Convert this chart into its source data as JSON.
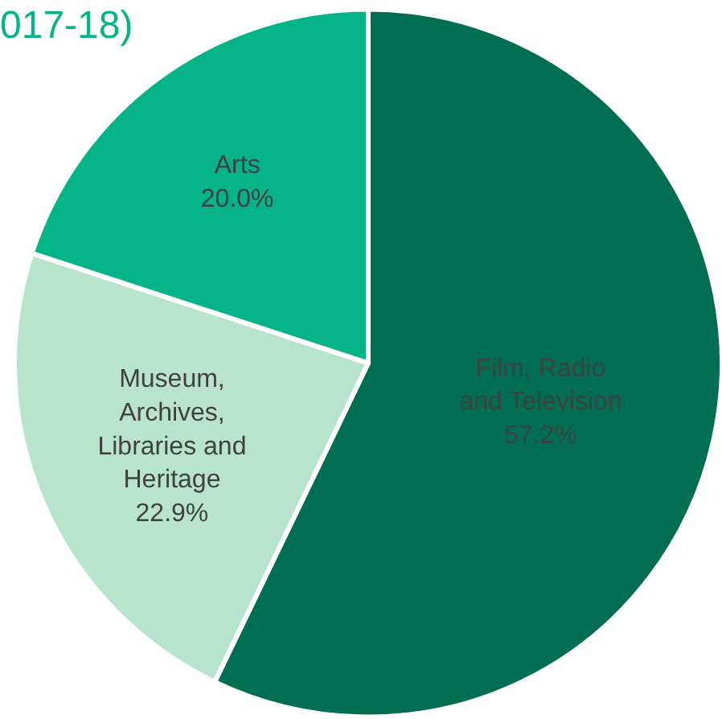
{
  "chart_data": {
    "type": "pie",
    "title": "017-18)",
    "categories": [
      "Film, Radio and Television",
      "Museum, Archives, Libraries and Heritage",
      "Arts"
    ],
    "values": [
      57.2,
      22.9,
      20.0
    ],
    "value_labels": [
      "57.2%",
      "22.9%",
      "20.0%"
    ],
    "colors": [
      "#006f51",
      "#b8e4cd",
      "#04b386"
    ],
    "legend": false
  }
}
